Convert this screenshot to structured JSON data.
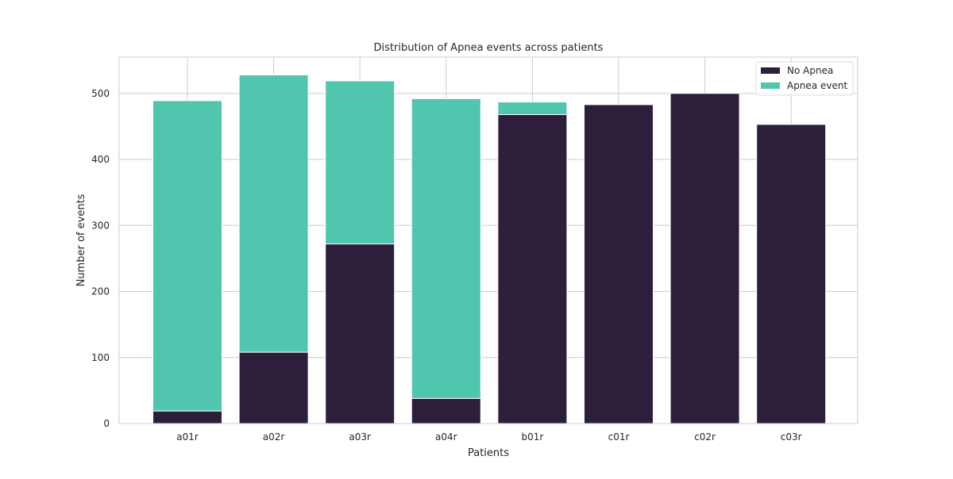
{
  "chart_data": {
    "type": "bar",
    "stacked": true,
    "title": "Distribution of Apnea events across patients",
    "xlabel": "Patients",
    "ylabel": "Number of events",
    "categories": [
      "a01r",
      "a02r",
      "a03r",
      "a04r",
      "b01r",
      "c01r",
      "c02r",
      "c03r"
    ],
    "series": [
      {
        "name": "No Apnea",
        "color": "#2d1f3b",
        "values": [
          19,
          108,
          272,
          38,
          468,
          483,
          500,
          453
        ]
      },
      {
        "name": "Apnea event",
        "color": "#4fc6ad",
        "values": [
          470,
          420,
          247,
          454,
          19,
          0,
          0,
          0
        ]
      }
    ],
    "ylim": [
      0,
      555
    ],
    "yticks": [
      0,
      100,
      200,
      300,
      400,
      500
    ],
    "grid": true,
    "legend_position": "top-right"
  }
}
